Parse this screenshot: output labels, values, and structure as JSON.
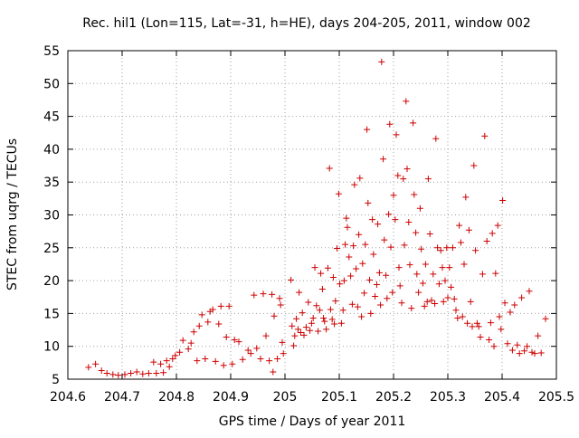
{
  "chart_data": {
    "type": "scatter",
    "title": "Rec. hil1 (Lon=115, Lat=-31, h=HE), days 204-205, 2011, window 002",
    "xlabel": "GPS time / Days of year 2011",
    "ylabel": "STEC from uqrg / TECUs",
    "xlim": [
      204.6,
      205.5
    ],
    "ylim": [
      5,
      55
    ],
    "xticks": [
      "204.6",
      "204.7",
      "204.8",
      "204.9",
      "205",
      "205.1",
      "205.2",
      "205.3",
      "205.4",
      "205.5"
    ],
    "xtick_values": [
      204.6,
      204.7,
      204.8,
      204.9,
      205.0,
      205.1,
      205.2,
      205.3,
      205.4,
      205.5
    ],
    "yticks": [
      "5",
      "10",
      "15",
      "20",
      "25",
      "30",
      "35",
      "40",
      "45",
      "50",
      "55"
    ],
    "ytick_values": [
      5,
      10,
      15,
      20,
      25,
      30,
      35,
      40,
      45,
      50,
      55
    ],
    "grid": true,
    "grid_style": "dotted",
    "legend": "none",
    "marker": "plus",
    "color": "#cc0000",
    "series": [
      {
        "points": [
          [
            204.638,
            6.8
          ],
          [
            204.651,
            7.3
          ],
          [
            204.662,
            6.3
          ],
          [
            204.672,
            5.9
          ],
          [
            204.683,
            5.7
          ],
          [
            204.693,
            5.6
          ],
          [
            204.705,
            5.7
          ],
          [
            204.716,
            5.9
          ],
          [
            204.727,
            6.1
          ],
          [
            204.738,
            5.8
          ],
          [
            204.749,
            5.9
          ],
          [
            204.758,
            7.6
          ],
          [
            204.763,
            5.9
          ],
          [
            204.771,
            7.3
          ],
          [
            204.776,
            6.0
          ],
          [
            204.782,
            7.8
          ],
          [
            204.787,
            6.9
          ],
          [
            204.793,
            8.1
          ],
          [
            204.798,
            8.6
          ],
          [
            204.806,
            9.1
          ],
          [
            204.812,
            10.9
          ],
          [
            204.822,
            9.6
          ],
          [
            204.827,
            10.5
          ],
          [
            204.832,
            12.2
          ],
          [
            204.838,
            7.8
          ],
          [
            204.842,
            13.1
          ],
          [
            204.847,
            14.8
          ],
          [
            204.853,
            8.1
          ],
          [
            204.858,
            13.7
          ],
          [
            204.862,
            15.3
          ],
          [
            204.867,
            15.6
          ],
          [
            204.872,
            7.7
          ],
          [
            204.878,
            13.4
          ],
          [
            204.882,
            16.1
          ],
          [
            204.887,
            7.1
          ],
          [
            204.892,
            11.4
          ],
          [
            204.897,
            16.1
          ],
          [
            204.903,
            7.3
          ],
          [
            204.907,
            11.0
          ],
          [
            204.915,
            10.7
          ],
          [
            204.922,
            8.0
          ],
          [
            204.932,
            9.4
          ],
          [
            204.937,
            8.9
          ],
          [
            204.943,
            17.8
          ],
          [
            204.948,
            9.7
          ],
          [
            204.955,
            8.1
          ],
          [
            204.96,
            18.0
          ],
          [
            204.965,
            11.6
          ],
          [
            204.971,
            7.8
          ],
          [
            204.976,
            17.9
          ],
          [
            204.978,
            6.1
          ],
          [
            204.98,
            14.6
          ],
          [
            204.986,
            8.1
          ],
          [
            204.99,
            17.3
          ],
          [
            204.992,
            16.3
          ],
          [
            204.995,
            10.6
          ],
          [
            204.997,
            8.9
          ],
          [
            205.011,
            20.1
          ],
          [
            205.013,
            13.1
          ],
          [
            205.016,
            10.1
          ],
          [
            205.018,
            11.6
          ],
          [
            205.021,
            14.2
          ],
          [
            205.024,
            12.6
          ],
          [
            205.026,
            18.2
          ],
          [
            205.029,
            12.1
          ],
          [
            205.032,
            15.1
          ],
          [
            205.035,
            11.7
          ],
          [
            205.039,
            12.9
          ],
          [
            205.043,
            16.7
          ],
          [
            205.046,
            12.4
          ],
          [
            205.049,
            13.5
          ],
          [
            205.052,
            14.3
          ],
          [
            205.055,
            22.0
          ],
          [
            205.058,
            16.2
          ],
          [
            205.061,
            12.3
          ],
          [
            205.064,
            15.5
          ],
          [
            205.066,
            21.1
          ],
          [
            205.069,
            18.7
          ],
          [
            205.071,
            14.3
          ],
          [
            205.073,
            13.8
          ],
          [
            205.076,
            12.6
          ],
          [
            205.079,
            21.9
          ],
          [
            205.082,
            37.1
          ],
          [
            205.084,
            15.6
          ],
          [
            205.087,
            14.1
          ],
          [
            205.089,
            20.5
          ],
          [
            205.091,
            13.4
          ],
          [
            205.093,
            16.9
          ],
          [
            205.096,
            24.9
          ],
          [
            205.099,
            33.2
          ],
          [
            205.101,
            19.5
          ],
          [
            205.104,
            13.5
          ],
          [
            205.107,
            15.5
          ],
          [
            205.109,
            20.0
          ],
          [
            205.111,
            25.5
          ],
          [
            205.113,
            29.5
          ],
          [
            205.115,
            28.1
          ],
          [
            205.118,
            23.6
          ],
          [
            205.121,
            20.7
          ],
          [
            205.124,
            16.4
          ],
          [
            205.126,
            25.3
          ],
          [
            205.128,
            34.6
          ],
          [
            205.131,
            21.8
          ],
          [
            205.134,
            16.0
          ],
          [
            205.136,
            27.0
          ],
          [
            205.138,
            35.6
          ],
          [
            205.141,
            14.5
          ],
          [
            205.143,
            22.6
          ],
          [
            205.146,
            18.1
          ],
          [
            205.148,
            25.5
          ],
          [
            205.151,
            43.0
          ],
          [
            205.153,
            31.8
          ],
          [
            205.156,
            20.1
          ],
          [
            205.158,
            15.0
          ],
          [
            205.161,
            29.3
          ],
          [
            205.163,
            24.0
          ],
          [
            205.166,
            17.6
          ],
          [
            205.169,
            19.4
          ],
          [
            205.171,
            28.6
          ],
          [
            205.174,
            21.2
          ],
          [
            205.176,
            16.3
          ],
          [
            205.178,
            53.3
          ],
          [
            205.181,
            38.5
          ],
          [
            205.183,
            26.2
          ],
          [
            205.186,
            20.8
          ],
          [
            205.188,
            17.3
          ],
          [
            205.191,
            30.1
          ],
          [
            205.193,
            43.8
          ],
          [
            205.195,
            25.1
          ],
          [
            205.198,
            18.2
          ],
          [
            205.2,
            33.0
          ],
          [
            205.203,
            29.3
          ],
          [
            205.205,
            42.2
          ],
          [
            205.208,
            36.0
          ],
          [
            205.21,
            22.0
          ],
          [
            205.212,
            19.2
          ],
          [
            205.215,
            16.6
          ],
          [
            205.218,
            35.5
          ],
          [
            205.22,
            25.4
          ],
          [
            205.223,
            47.3
          ],
          [
            205.225,
            37.0
          ],
          [
            205.228,
            28.9
          ],
          [
            205.23,
            22.4
          ],
          [
            205.233,
            15.8
          ],
          [
            205.236,
            44.0
          ],
          [
            205.238,
            33.1
          ],
          [
            205.241,
            27.3
          ],
          [
            205.243,
            21.0
          ],
          [
            205.246,
            18.2
          ],
          [
            205.249,
            31.0
          ],
          [
            205.251,
            24.8
          ],
          [
            205.254,
            19.6
          ],
          [
            205.257,
            16.1
          ],
          [
            205.259,
            22.5
          ],
          [
            205.262,
            16.8
          ],
          [
            205.264,
            35.5
          ],
          [
            205.267,
            27.1
          ],
          [
            205.27,
            17.0
          ],
          [
            205.273,
            21.0
          ],
          [
            205.276,
            16.5
          ],
          [
            205.278,
            41.6
          ],
          [
            205.281,
            25.0
          ],
          [
            205.284,
            19.5
          ],
          [
            205.287,
            24.6
          ],
          [
            205.29,
            22.0
          ],
          [
            205.292,
            16.8
          ],
          [
            205.295,
            20.0
          ],
          [
            205.298,
            25.0
          ],
          [
            205.3,
            17.4
          ],
          [
            205.303,
            22.0
          ],
          [
            205.306,
            19.0
          ],
          [
            205.309,
            25.0
          ],
          [
            205.312,
            17.2
          ],
          [
            205.315,
            15.5
          ],
          [
            205.318,
            14.3
          ],
          [
            205.321,
            28.4
          ],
          [
            205.324,
            25.8
          ],
          [
            205.327,
            14.5
          ],
          [
            205.33,
            22.5
          ],
          [
            205.333,
            32.7
          ],
          [
            205.336,
            13.5
          ],
          [
            205.339,
            27.7
          ],
          [
            205.342,
            16.8
          ],
          [
            205.345,
            13.0
          ],
          [
            205.348,
            37.5
          ],
          [
            205.351,
            24.6
          ],
          [
            205.354,
            13.5
          ],
          [
            205.357,
            13.0
          ],
          [
            205.36,
            11.4
          ],
          [
            205.364,
            21.0
          ],
          [
            205.368,
            42.0
          ],
          [
            205.372,
            26.0
          ],
          [
            205.376,
            11.0
          ],
          [
            205.379,
            13.6
          ],
          [
            205.382,
            27.2
          ],
          [
            205.385,
            10.0
          ],
          [
            205.388,
            21.1
          ],
          [
            205.392,
            28.4
          ],
          [
            205.395,
            14.5
          ],
          [
            205.398,
            12.6
          ],
          [
            205.401,
            32.2
          ],
          [
            205.405,
            16.6
          ],
          [
            205.41,
            10.4
          ],
          [
            205.415,
            15.2
          ],
          [
            205.419,
            9.4
          ],
          [
            205.423,
            16.3
          ],
          [
            205.428,
            10.2
          ],
          [
            205.432,
            8.9
          ],
          [
            205.436,
            17.4
          ],
          [
            205.441,
            9.3
          ],
          [
            205.446,
            10.0
          ],
          [
            205.45,
            18.4
          ],
          [
            205.455,
            9.1
          ],
          [
            205.46,
            8.9
          ],
          [
            205.466,
            11.6
          ],
          [
            205.472,
            9.0
          ],
          [
            205.48,
            14.2
          ]
        ]
      }
    ]
  }
}
